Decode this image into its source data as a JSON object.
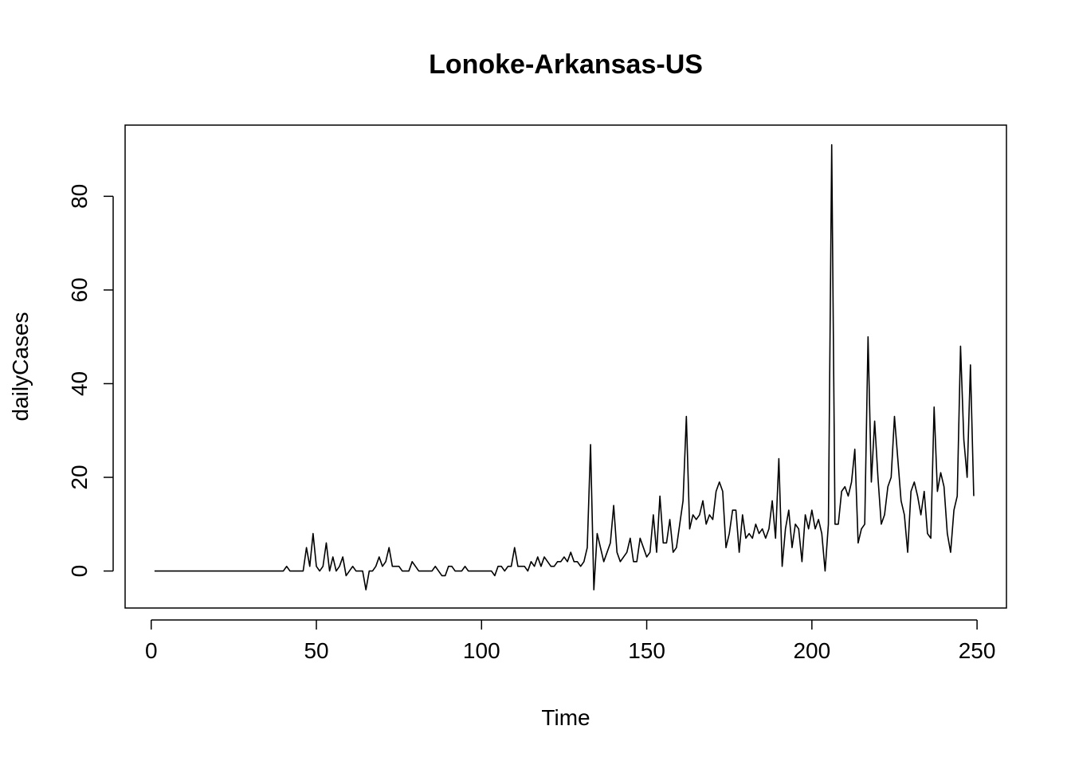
{
  "chart_data": {
    "type": "line",
    "title": "Lonoke-Arkansas-US",
    "xlabel": "Time",
    "ylabel": "dailyCases",
    "xlim": [
      -7.9,
      258.9
    ],
    "ylim": [
      -7.9,
      95.2
    ],
    "x_ticks": [
      0,
      50,
      100,
      150,
      200,
      250
    ],
    "y_ticks": [
      0,
      20,
      40,
      60,
      80
    ],
    "grid": false,
    "legend": "none",
    "line_color": "#000000",
    "series": [
      {
        "x_start": 1,
        "values": [
          0,
          0,
          0,
          0,
          0,
          0,
          0,
          0,
          0,
          0,
          0,
          0,
          0,
          0,
          0,
          0,
          0,
          0,
          0,
          0,
          0,
          0,
          0,
          0,
          0,
          0,
          0,
          0,
          0,
          0,
          0,
          0,
          0,
          0,
          0,
          0,
          0,
          0,
          0,
          0,
          1,
          0,
          0,
          0,
          0,
          0,
          5,
          1,
          8,
          1,
          0,
          1,
          6,
          0,
          3,
          0,
          1,
          3,
          -1,
          0,
          1,
          0,
          0,
          0,
          -4,
          0,
          0,
          1,
          3,
          1,
          2,
          5,
          1,
          1,
          1,
          0,
          0,
          0,
          2,
          1,
          0,
          0,
          0,
          0,
          0,
          1,
          0,
          -1,
          -1,
          1,
          1,
          0,
          0,
          0,
          1,
          0,
          0,
          0,
          0,
          0,
          0,
          0,
          0,
          -1,
          1,
          1,
          0,
          1,
          1,
          5,
          1,
          1,
          1,
          0,
          2,
          1,
          3,
          1,
          3,
          2,
          1,
          1,
          2,
          2,
          3,
          2,
          4,
          2,
          2,
          1,
          2,
          5,
          27,
          -4,
          8,
          5,
          2,
          4,
          6,
          14,
          4,
          2,
          3,
          4,
          7,
          2,
          2,
          7,
          5,
          3,
          4,
          12,
          4,
          16,
          6,
          6,
          11,
          4,
          5,
          10,
          15,
          33,
          9,
          12,
          11,
          12,
          15,
          10,
          12,
          11,
          17,
          19,
          17,
          5,
          8,
          13,
          13,
          4,
          12,
          7,
          8,
          7,
          10,
          8,
          9,
          7,
          9,
          15,
          7,
          24,
          1,
          9,
          13,
          5,
          10,
          9,
          2,
          12,
          9,
          13,
          9,
          11,
          8,
          0,
          10,
          91,
          10,
          10,
          17,
          18,
          16,
          19,
          26,
          6,
          9,
          10,
          50,
          19,
          32,
          20,
          10,
          12,
          18,
          20,
          33,
          24,
          15,
          12,
          4,
          17,
          19,
          16,
          12,
          17,
          8,
          7,
          35,
          17,
          21,
          18,
          8,
          4,
          13,
          16,
          48,
          28,
          20,
          44,
          16
        ]
      }
    ]
  }
}
